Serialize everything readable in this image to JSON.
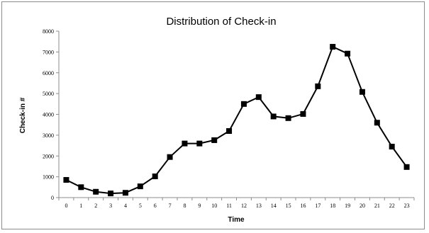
{
  "chart_data": {
    "type": "line",
    "title": "Distribution of Check-in",
    "xlabel": "Time",
    "ylabel": "Check-in #",
    "categories": [
      "0",
      "1",
      "2",
      "3",
      "4",
      "5",
      "6",
      "7",
      "8",
      "9",
      "10",
      "11",
      "12",
      "13",
      "14",
      "15",
      "16",
      "17",
      "18",
      "19",
      "20",
      "21",
      "22",
      "23"
    ],
    "y_ticks": [
      "0",
      "1000",
      "2000",
      "3000",
      "4000",
      "5000",
      "6000",
      "7000",
      "8000"
    ],
    "ylim": [
      0,
      8000
    ],
    "grid": false,
    "legend": "none",
    "series": [
      {
        "values": [
          850,
          500,
          280,
          200,
          230,
          540,
          1020,
          1950,
          2600,
          2600,
          2760,
          3200,
          4500,
          4830,
          3900,
          3820,
          4020,
          5350,
          7250,
          6920,
          5080,
          3600,
          2450,
          1470
        ],
        "color": "#000000",
        "marker": "square"
      }
    ]
  }
}
